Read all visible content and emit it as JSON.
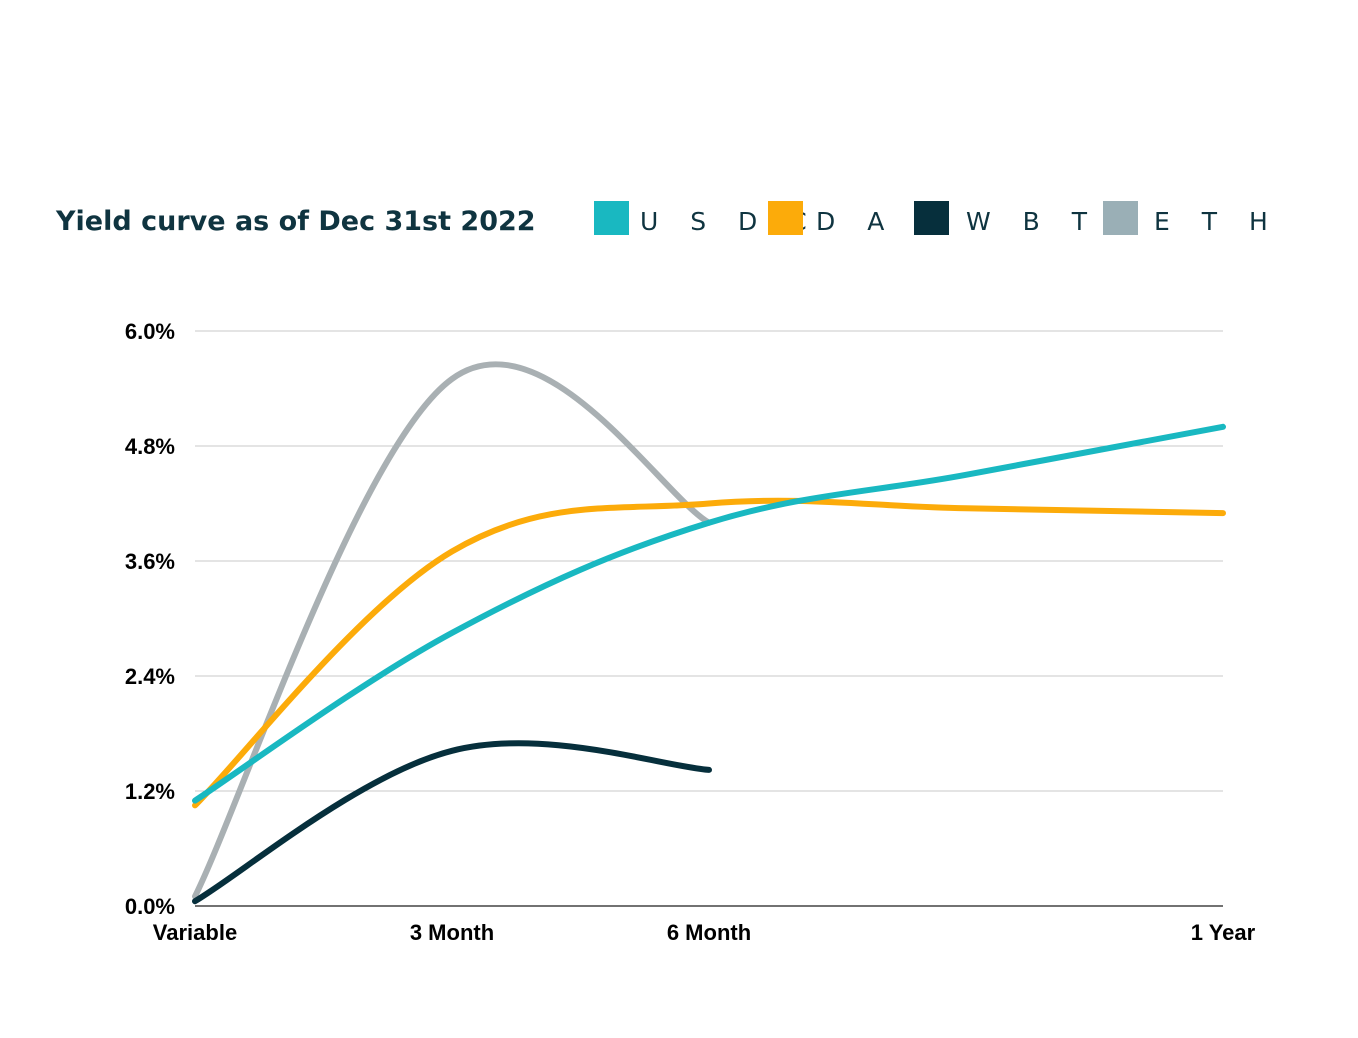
{
  "chart_data": {
    "type": "line",
    "title": "Yield curve as of Dec 31st 2022",
    "xlabel": "",
    "ylabel": "",
    "legend_position": "top-right",
    "x_positions": [
      0,
      3,
      6,
      12
    ],
    "categories": [
      "Variable",
      "3 Month",
      "6 Month",
      "1 Year"
    ],
    "ylim": [
      0,
      6.0
    ],
    "yticks": [
      0,
      1.2,
      2.4,
      3.6,
      4.8,
      6.0
    ],
    "ytick_labels": [
      "0.0%",
      "1.2%",
      "2.4%",
      "3.6%",
      "4.8%",
      "6.0%"
    ],
    "grid": true,
    "series": [
      {
        "name": "USDC",
        "color": "#19b8c1",
        "points": [
          [
            0,
            1.1
          ],
          [
            3,
            2.85
          ],
          [
            6,
            4.0
          ],
          [
            9,
            4.5
          ],
          [
            12,
            5.0
          ]
        ]
      },
      {
        "name": "DAI",
        "color": "#fcab0a",
        "points": [
          [
            0,
            1.05
          ],
          [
            3,
            3.7
          ],
          [
            6,
            4.2
          ],
          [
            9,
            4.15
          ],
          [
            12,
            4.1
          ]
        ]
      },
      {
        "name": "WBTC",
        "color": "#062f3c",
        "points": [
          [
            0,
            0.05
          ],
          [
            3,
            1.62
          ],
          [
            6,
            1.42
          ]
        ]
      },
      {
        "name": "ETH",
        "color": "#a9b0b3",
        "points": [
          [
            0,
            0.1
          ],
          [
            3,
            5.5
          ],
          [
            6,
            4.0
          ]
        ]
      }
    ]
  },
  "legend": {
    "items": [
      {
        "label": "U S D C",
        "color": "#19b8c1"
      },
      {
        "label": "D A I",
        "color": "#fcab0a"
      },
      {
        "label": "W B T C",
        "color": "#062f3c"
      },
      {
        "label": "E T H",
        "color": "#9aafb6"
      }
    ]
  }
}
